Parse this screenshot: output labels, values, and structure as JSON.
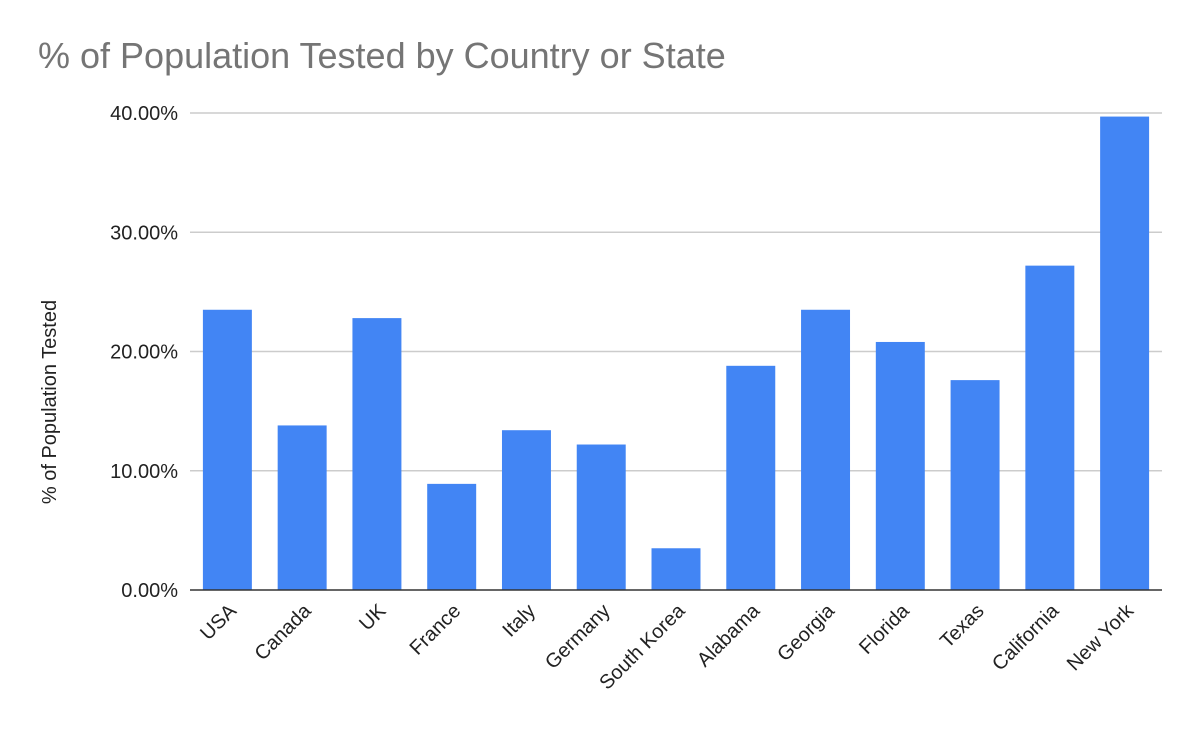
{
  "chart_data": {
    "type": "bar",
    "title": "% of Population Tested by Country or State",
    "xlabel": "",
    "ylabel": "% of Population Tested",
    "categories": [
      "USA",
      "Canada",
      "UK",
      "France",
      "Italy",
      "Germany",
      "South Korea",
      "Alabama",
      "Georgia",
      "Florida",
      "Texas",
      "California",
      "New York"
    ],
    "values": [
      23.5,
      13.8,
      22.8,
      8.9,
      13.4,
      12.2,
      3.5,
      18.8,
      23.5,
      20.8,
      17.6,
      27.2,
      39.7
    ],
    "ylim": [
      0,
      40
    ],
    "yticks": [
      "0.00%",
      "10.00%",
      "20.00%",
      "30.00%",
      "40.00%"
    ],
    "grid": true,
    "legend": "none",
    "bar_color": "#4285f4"
  }
}
